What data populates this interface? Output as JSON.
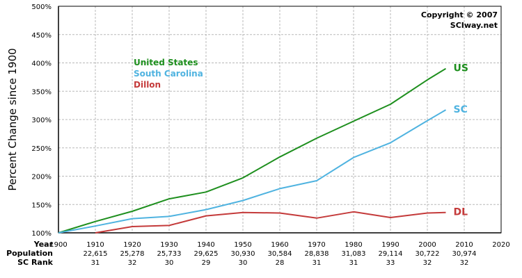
{
  "chart_data": {
    "type": "line",
    "ylabel": "Percent Change since 1900",
    "copyright": [
      "Copyright © 2007",
      "SCIway.net"
    ],
    "x_ticks": [
      "1900",
      "1910",
      "1920",
      "1930",
      "1940",
      "1950",
      "1960",
      "1970",
      "1980",
      "1990",
      "2000",
      "2010",
      "2020"
    ],
    "y_ticks": [
      "100%",
      "150%",
      "200%",
      "250%",
      "300%",
      "350%",
      "400%",
      "450%",
      "500%"
    ],
    "xlim": [
      1900,
      2020
    ],
    "ylim": [
      100,
      500
    ],
    "grid": true,
    "legend": {
      "placement": "upper-left",
      "entries": [
        "United States",
        "South Carolina",
        "Dillon"
      ]
    },
    "series": [
      {
        "name": "United States",
        "end_label": "US",
        "color": "#1e8f1e",
        "x": [
          1900,
          1910,
          1920,
          1930,
          1940,
          1950,
          1960,
          1970,
          1980,
          1990,
          2000,
          2005
        ],
        "y": [
          100,
          120,
          138,
          160,
          172,
          197,
          234,
          267,
          297,
          327,
          370,
          390
        ]
      },
      {
        "name": "South Carolina",
        "end_label": "SC",
        "color": "#4fb3e0",
        "x": [
          1900,
          1910,
          1920,
          1930,
          1940,
          1950,
          1960,
          1970,
          1980,
          1990,
          2000,
          2005
        ],
        "y": [
          100,
          112,
          125,
          129,
          141,
          157,
          178,
          192,
          233,
          259,
          298,
          317
        ]
      },
      {
        "name": "Dillon",
        "end_label": "DL",
        "color": "#c43a3a",
        "x": [
          1910,
          1920,
          1930,
          1940,
          1950,
          1960,
          1970,
          1980,
          1990,
          2000,
          2005
        ],
        "y": [
          100,
          111,
          113,
          130,
          136,
          135,
          126,
          137,
          127,
          135,
          136
        ]
      }
    ],
    "table": {
      "row_labels": [
        "Year",
        "Population",
        "SC Rank"
      ],
      "columns": [
        {
          "year": "1910",
          "population": "22,615",
          "rank": "31"
        },
        {
          "year": "1920",
          "population": "25,278",
          "rank": "32"
        },
        {
          "year": "1930",
          "population": "25,733",
          "rank": "30"
        },
        {
          "year": "1940",
          "population": "29,625",
          "rank": "29"
        },
        {
          "year": "1950",
          "population": "30,930",
          "rank": "30"
        },
        {
          "year": "1960",
          "population": "30,584",
          "rank": "28"
        },
        {
          "year": "1970",
          "population": "28,838",
          "rank": "31"
        },
        {
          "year": "1980",
          "population": "31,083",
          "rank": "31"
        },
        {
          "year": "1990",
          "population": "29,114",
          "rank": "33"
        },
        {
          "year": "2000",
          "population": "30,722",
          "rank": "32"
        },
        {
          "year": "2010",
          "population": "30,974",
          "rank": "32"
        }
      ]
    }
  }
}
